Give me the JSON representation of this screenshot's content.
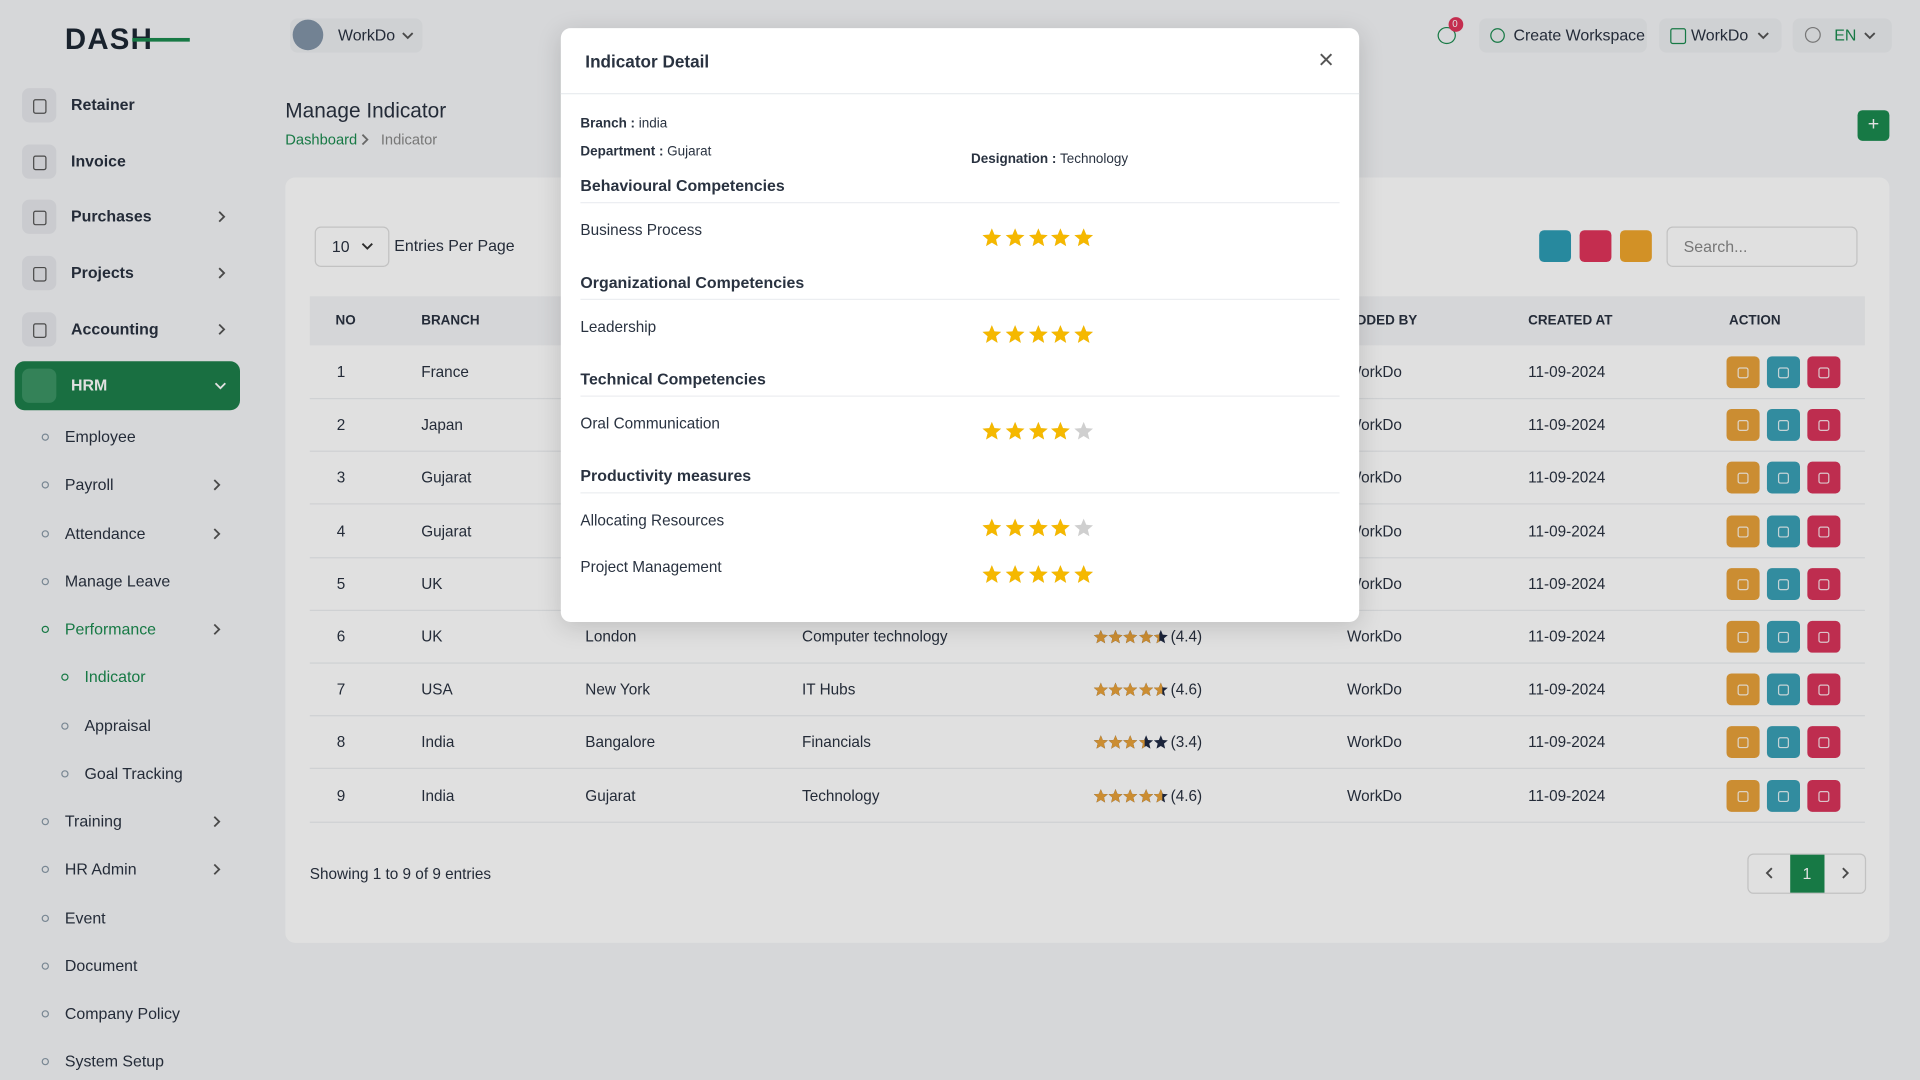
{
  "brand": "DASH",
  "topbar": {
    "workspace": "WorkDo",
    "notification_count": 0,
    "create_workspace": "Create Workspace",
    "workspace_menu": "WorkDo",
    "language": "EN"
  },
  "sidebar": {
    "items": [
      {
        "label": "Retainer",
        "level": 0
      },
      {
        "label": "Invoice",
        "level": 0
      },
      {
        "label": "Purchases",
        "level": 0,
        "expandable": true
      },
      {
        "label": "Projects",
        "level": 0,
        "expandable": true
      },
      {
        "label": "Accounting",
        "level": 0,
        "expandable": true
      },
      {
        "label": "HRM",
        "level": 0,
        "expandable": true,
        "active": true
      },
      {
        "label": "Employee",
        "level": 1
      },
      {
        "label": "Payroll",
        "level": 1,
        "expandable": true
      },
      {
        "label": "Attendance",
        "level": 1,
        "expandable": true
      },
      {
        "label": "Manage Leave",
        "level": 1
      },
      {
        "label": "Performance",
        "level": 1,
        "expandable": true,
        "active": true
      },
      {
        "label": "Indicator",
        "level": 2,
        "active": true
      },
      {
        "label": "Appraisal",
        "level": 2
      },
      {
        "label": "Goal Tracking",
        "level": 2
      },
      {
        "label": "Training",
        "level": 1,
        "expandable": true
      },
      {
        "label": "HR Admin",
        "level": 1,
        "expandable": true
      },
      {
        "label": "Event",
        "level": 1
      },
      {
        "label": "Document",
        "level": 1
      },
      {
        "label": "Company Policy",
        "level": 1
      },
      {
        "label": "System Setup",
        "level": 1
      }
    ]
  },
  "page": {
    "title": "Manage Indicator",
    "breadcrumb": [
      "Dashboard",
      "Indicator"
    ]
  },
  "table": {
    "entries_per_page": 10,
    "entries_label": "Entries Per Page",
    "search_placeholder": "Search...",
    "columns": [
      "NO",
      "BRANCH",
      null,
      null,
      null,
      "ADDED BY",
      "CREATED AT",
      "ACTION"
    ],
    "rows": [
      {
        "no": 1,
        "branch": "France",
        "added_by": "WorkDo",
        "created_at": "11-09-2024"
      },
      {
        "no": 2,
        "branch": "Japan",
        "added_by": "WorkDo",
        "created_at": "11-09-2024"
      },
      {
        "no": 3,
        "branch": "Gujarat",
        "added_by": "WorkDo",
        "created_at": "11-09-2024"
      },
      {
        "no": 4,
        "branch": "Gujarat",
        "added_by": "WorkDo",
        "created_at": "11-09-2024"
      },
      {
        "no": 5,
        "branch": "UK",
        "added_by": "WorkDo",
        "created_at": "11-09-2024"
      },
      {
        "no": 6,
        "branch": "UK",
        "department": "London",
        "designation": "Computer technology",
        "rating": 4.4,
        "rating_label": "(4.4)",
        "added_by": "WorkDo",
        "created_at": "11-09-2024"
      },
      {
        "no": 7,
        "branch": "USA",
        "department": "New York",
        "designation": "IT Hubs",
        "rating": 4.6,
        "rating_label": "(4.6)",
        "added_by": "WorkDo",
        "created_at": "11-09-2024"
      },
      {
        "no": 8,
        "branch": "India",
        "department": "Bangalore",
        "designation": "Financials",
        "rating": 3.4,
        "rating_label": "(3.4)",
        "added_by": "WorkDo",
        "created_at": "11-09-2024"
      },
      {
        "no": 9,
        "branch": "India",
        "department": "Gujarat",
        "designation": "Technology",
        "rating": 4.6,
        "rating_label": "(4.6)",
        "added_by": "WorkDo",
        "created_at": "11-09-2024"
      }
    ],
    "footer": "Showing 1 to 9 of 9 entries",
    "current_page": 1
  },
  "modal": {
    "title": "Indicator Detail",
    "branch_label": "Branch :",
    "branch": "india",
    "department_label": "Department :",
    "department": "Gujarat",
    "designation_label": "Designation :",
    "designation": "Technology",
    "rating_max": 5,
    "sections": [
      {
        "title": "Behavioural Competencies",
        "items": [
          {
            "name": "Business Process",
            "rating": 5
          }
        ]
      },
      {
        "title": "Organizational Competencies",
        "items": [
          {
            "name": "Leadership",
            "rating": 5
          }
        ]
      },
      {
        "title": "Technical Competencies",
        "items": [
          {
            "name": "Oral Communication",
            "rating": 4
          }
        ]
      },
      {
        "title": "Productivity measures",
        "items": [
          {
            "name": "Allocating Resources",
            "rating": 4
          },
          {
            "name": "Project Management",
            "rating": 5
          }
        ]
      }
    ]
  }
}
